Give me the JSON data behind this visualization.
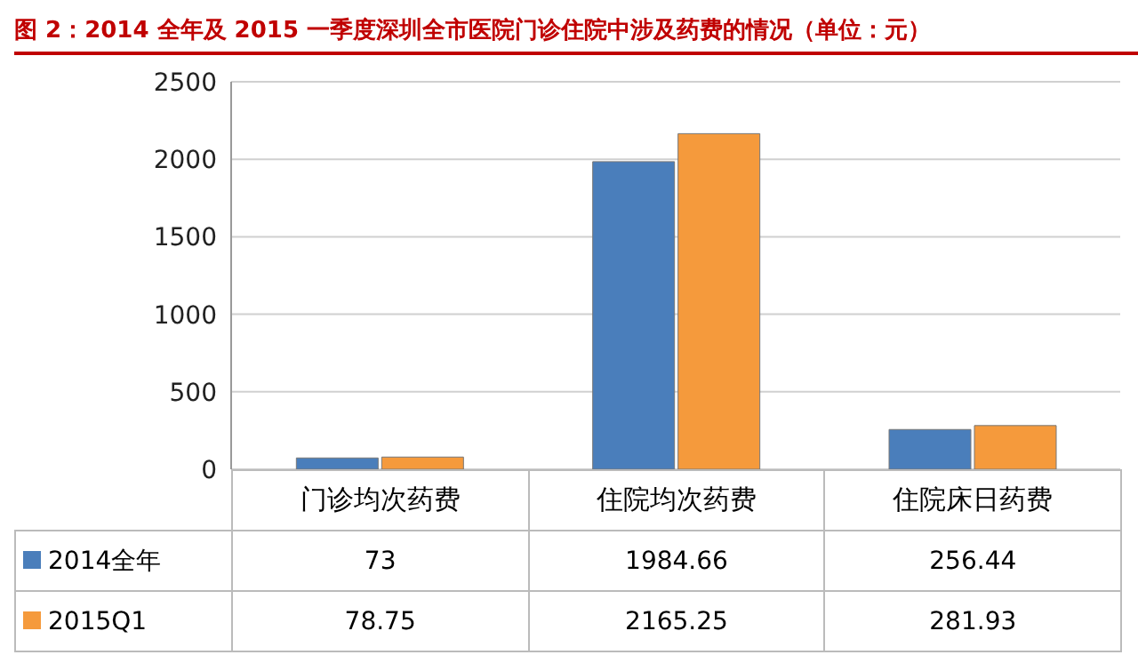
{
  "chart_data": {
    "type": "bar",
    "title": "图 2：2014 全年及 2015 一季度深圳全市医院门诊住院中涉及药费的情况（单位：元）",
    "categories": [
      "门诊均次药费",
      "住院均次药费",
      "住院床日药费"
    ],
    "series": [
      {
        "name": "2014全年",
        "color": "#4a7ebb",
        "values": [
          73,
          1984.66,
          256.44
        ]
      },
      {
        "name": "2015Q1",
        "color": "#f59a3c",
        "values": [
          78.75,
          2165.25,
          281.93
        ]
      }
    ],
    "ylim": [
      0,
      2500
    ],
    "yticks": [
      0,
      500,
      1000,
      1500,
      2000,
      2500
    ],
    "grid": "y",
    "legend": "bottom left",
    "data_labels": true
  }
}
